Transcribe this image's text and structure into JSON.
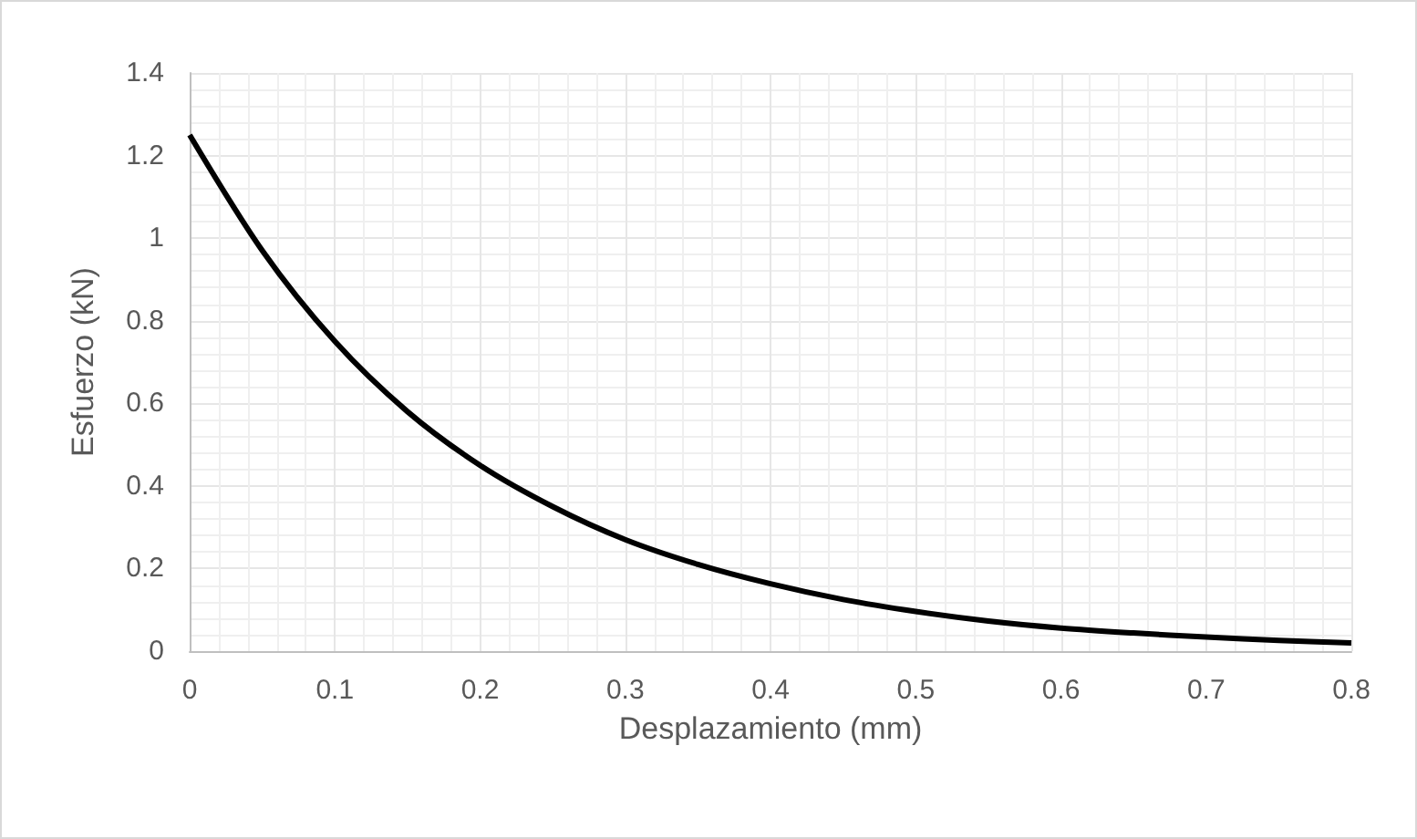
{
  "chart_data": {
    "type": "line",
    "xlabel": "Desplazamiento (mm)",
    "ylabel": "Esfuerzo (kN)",
    "x": [
      0,
      0.05,
      0.1,
      0.15,
      0.2,
      0.25,
      0.3,
      0.35,
      0.4,
      0.45,
      0.5,
      0.55,
      0.6,
      0.65,
      0.7,
      0.75,
      0.8
    ],
    "series": [
      {
        "color": "#000000",
        "values": [
          1.25,
          0.97,
          0.75,
          0.58,
          0.45,
          0.35,
          0.27,
          0.21,
          0.163,
          0.125,
          0.096,
          0.073,
          0.056,
          0.044,
          0.034,
          0.026,
          0.02
        ]
      }
    ],
    "xlim": [
      0,
      0.8
    ],
    "xticks": [
      0,
      0.1,
      0.2,
      0.3,
      0.4,
      0.5,
      0.6,
      0.7,
      0.8
    ],
    "ylim": [
      0,
      1.4
    ],
    "yticks": [
      0,
      0.2,
      0.4,
      0.6,
      0.8,
      1,
      1.2,
      1.4
    ],
    "grid": true,
    "marker": "none",
    "line_style": "solid"
  }
}
